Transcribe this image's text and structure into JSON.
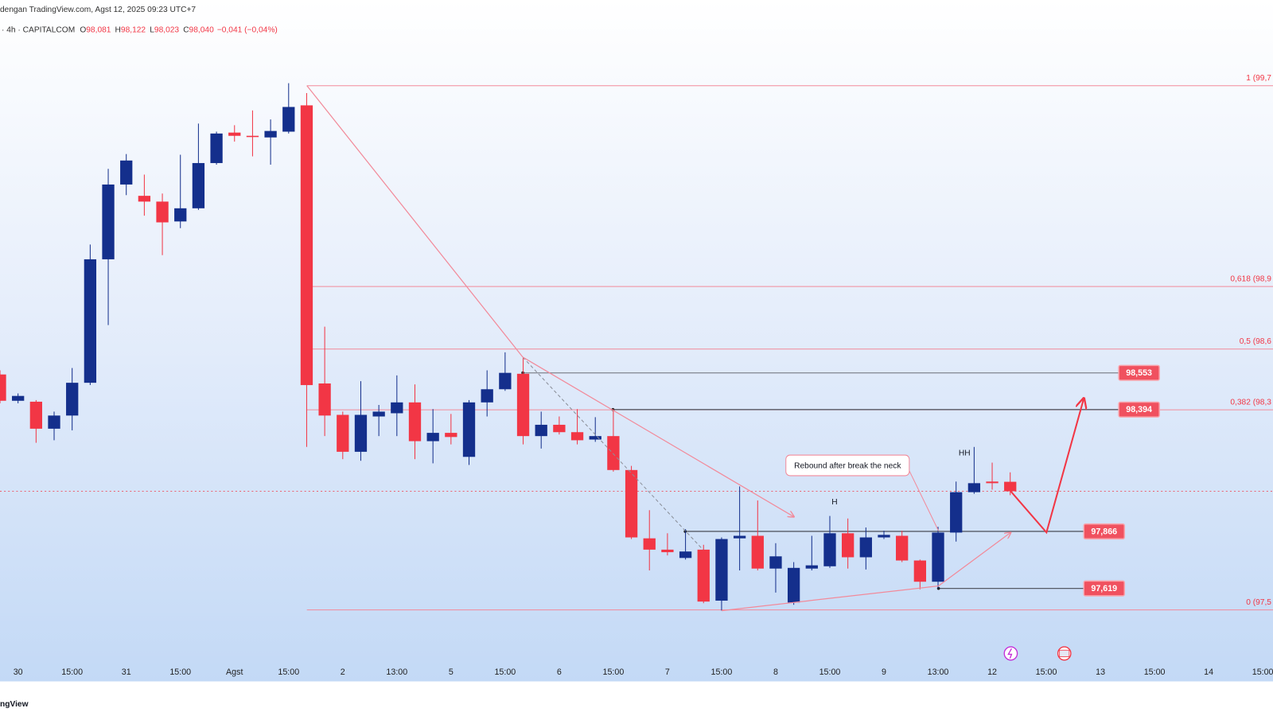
{
  "header": {
    "attribution": "dengan TradingView.com, Agst 12, 2025 09:23 UTC+7",
    "symbol": "· 4h · CAPITALCOM",
    "legend": [
      {
        "key": "O",
        "value": "98,081"
      },
      {
        "key": "H",
        "value": "98,122"
      },
      {
        "key": "L",
        "value": "98,023"
      },
      {
        "key": "C",
        "value": "98,040"
      }
    ],
    "change": "−0,041 (−0,04%)"
  },
  "chart_data": {
    "type": "candlestick",
    "categories": [
      null,
      "30",
      null,
      null,
      "15:00",
      null,
      null,
      "31",
      null,
      null,
      "15:00",
      null,
      null,
      "Agst",
      null,
      null,
      "15:00",
      null,
      null,
      "2",
      null,
      null,
      "13:00",
      null,
      null,
      "5",
      null,
      null,
      "15:00",
      null,
      null,
      "6",
      null,
      null,
      "15:00",
      null,
      null,
      "7",
      null,
      null,
      "15:00",
      null,
      null,
      "8",
      null,
      null,
      "15:00",
      null,
      null,
      "9",
      null,
      null,
      "13:00",
      null,
      null,
      "12",
      null,
      null,
      "15:00",
      null,
      null,
      "13",
      null,
      null,
      "15:00",
      null,
      null,
      "14",
      null,
      null,
      "15:00"
    ],
    "open": [
      98.546,
      98.432,
      98.428,
      98.311,
      98.368,
      98.51,
      99.045,
      99.369,
      99.32,
      99.295,
      99.209,
      99.266,
      99.462,
      99.594,
      99.58,
      99.573,
      99.598,
      99.712,
      98.507,
      98.371,
      98.211,
      98.364,
      98.378,
      98.425,
      98.257,
      98.293,
      98.189,
      98.425,
      98.482,
      98.549,
      98.279,
      98.328,
      98.296,
      98.264,
      98.279,
      98.132,
      97.836,
      97.787,
      97.751,
      97.787,
      97.566,
      97.836,
      97.847,
      97.705,
      97.558,
      97.705,
      97.715,
      97.858,
      97.754,
      97.84,
      97.847,
      97.74,
      97.648,
      97.861,
      98.036,
      98.082,
      98.081,
      null,
      null,
      null,
      null,
      null,
      null,
      null,
      null,
      null,
      null,
      null,
      null,
      null,
      null
    ],
    "high": [
      98.564,
      98.464,
      98.435,
      98.385,
      98.574,
      99.109,
      99.437,
      99.501,
      99.412,
      99.33,
      99.498,
      99.633,
      99.598,
      99.626,
      99.69,
      99.651,
      99.808,
      99.765,
      98.753,
      98.385,
      98.517,
      98.414,
      98.542,
      98.503,
      98.396,
      98.375,
      98.435,
      98.564,
      98.642,
      98.621,
      98.385,
      98.364,
      98.396,
      98.361,
      98.396,
      98.15,
      97.958,
      97.858,
      97.876,
      97.808,
      97.84,
      98.061,
      98.0,
      97.815,
      97.733,
      97.847,
      97.933,
      97.922,
      97.883,
      97.869,
      97.869,
      97.744,
      97.886,
      98.082,
      98.232,
      98.164,
      98.122,
      null,
      null,
      null,
      null,
      null,
      null,
      null,
      null,
      null,
      null,
      null,
      null,
      null,
      null
    ],
    "low": [
      98.421,
      98.421,
      98.25,
      98.261,
      98.304,
      98.5,
      98.76,
      99.323,
      99.234,
      99.063,
      99.18,
      99.259,
      99.455,
      99.555,
      99.491,
      99.455,
      99.59,
      98.232,
      98.279,
      98.179,
      98.172,
      98.279,
      98.279,
      98.179,
      98.161,
      98.243,
      98.154,
      98.364,
      98.475,
      98.243,
      98.225,
      98.286,
      98.243,
      98.254,
      98.125,
      97.833,
      97.697,
      97.762,
      97.744,
      97.555,
      97.523,
      97.697,
      97.697,
      97.601,
      97.548,
      97.697,
      97.708,
      97.705,
      97.701,
      97.833,
      97.733,
      97.615,
      97.619,
      97.822,
      98.029,
      98.047,
      98.023,
      null,
      null,
      null,
      null,
      null,
      null,
      null,
      null,
      null,
      null,
      null,
      null,
      null,
      null
    ],
    "close": [
      98.432,
      98.453,
      98.311,
      98.368,
      98.51,
      99.045,
      99.369,
      99.473,
      99.295,
      99.205,
      99.266,
      99.462,
      99.59,
      99.58,
      99.576,
      99.601,
      99.705,
      98.5,
      98.368,
      98.211,
      98.371,
      98.385,
      98.425,
      98.257,
      98.293,
      98.275,
      98.425,
      98.482,
      98.553,
      98.279,
      98.328,
      98.296,
      98.261,
      98.279,
      98.132,
      97.84,
      97.787,
      97.776,
      97.779,
      97.562,
      97.833,
      97.847,
      97.705,
      97.758,
      97.708,
      97.719,
      97.858,
      97.754,
      97.84,
      97.851,
      97.74,
      97.648,
      97.861,
      98.036,
      98.075,
      98.075,
      98.04,
      null,
      null,
      null,
      null,
      null,
      null,
      null,
      null,
      null,
      null,
      null,
      null,
      null,
      null
    ],
    "colors": {
      "up": "#142f8c",
      "down": "#f23645"
    },
    "ylim": [
      97.216,
      100.008
    ],
    "grid": false,
    "fib_levels": [
      {
        "value": 99.797,
        "label": "1 (99,7"
      },
      {
        "value": 98.927,
        "label": "0,618 (98,9"
      },
      {
        "value": 98.656,
        "label": "0,5 (98,6"
      },
      {
        "value": 98.393,
        "label": "0,382 (98,3"
      },
      {
        "value": 97.526,
        "label": "0 (97,5"
      }
    ],
    "price_labels": [
      {
        "value": 98.553,
        "label": "98,553"
      },
      {
        "value": 98.394,
        "label": "98,394"
      },
      {
        "value": 97.866,
        "label": "97,866"
      },
      {
        "value": 97.619,
        "label": "97,619"
      }
    ],
    "annotations": {
      "callout": "Rebound after break the neck",
      "head": "H",
      "higher_high": "HH"
    }
  },
  "footer": {
    "logo": "ngView"
  }
}
